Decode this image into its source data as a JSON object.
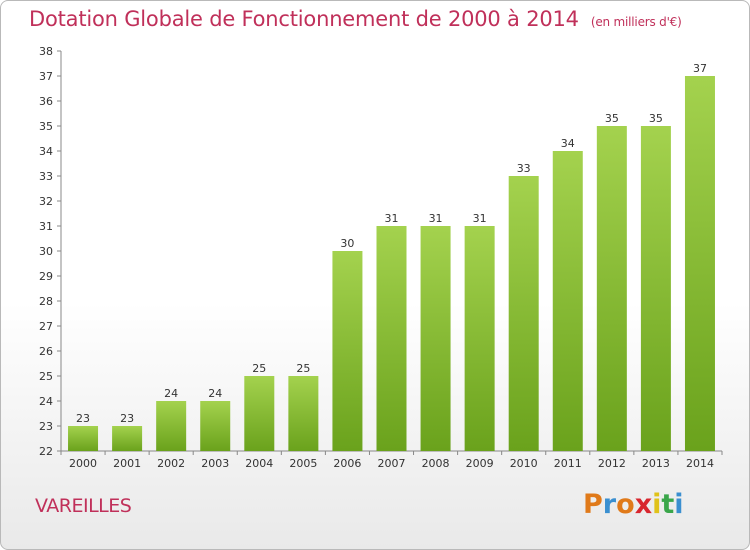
{
  "header": {
    "title": "Dotation Globale de Fonctionnement de 2000 à 2014",
    "subtitle": "(en milliers d'€)"
  },
  "footer": {
    "place": "VAREILLES",
    "brand": "Proxiti",
    "brand_colors": [
      "#e07a1a",
      "#3a8fd0",
      "#e07a1a",
      "#d8262e",
      "#e0c21a",
      "#3aa64a",
      "#3a8fd0"
    ]
  },
  "chart_data": {
    "type": "bar",
    "title": "Dotation Globale de Fonctionnement de 2000 à 2014",
    "xlabel": "",
    "ylabel": "",
    "categories": [
      "2000",
      "2001",
      "2002",
      "2003",
      "2004",
      "2005",
      "2006",
      "2007",
      "2008",
      "2009",
      "2010",
      "2011",
      "2012",
      "2013",
      "2014"
    ],
    "values": [
      23,
      23,
      24,
      24,
      25,
      25,
      30,
      31,
      31,
      31,
      33,
      34,
      35,
      35,
      37
    ],
    "ylim": [
      22,
      38
    ],
    "yticks": [
      22,
      23,
      24,
      25,
      26,
      27,
      28,
      29,
      30,
      31,
      32,
      33,
      34,
      35,
      36,
      37,
      38
    ],
    "grid": false,
    "bar_color_top": "#a4d24e",
    "bar_color_bottom": "#6aa21c",
    "data_labels": true
  }
}
